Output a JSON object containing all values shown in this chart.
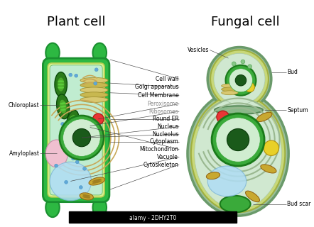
{
  "title_plant": "Plant cell",
  "title_fungal": "Fungal cell",
  "bg_color": "#ffffff",
  "colors": {
    "cell_wall_green": "#2db842",
    "cell_wall_dark": "#1a9030",
    "cell_inner_yellow": "#e8f07a",
    "cell_fill": "#c0ecd0",
    "cell_stroke": "#6abe6a",
    "nucleus_outer": "#3aaa3a",
    "nucleus_inner": "#1a7a1a",
    "nucleus_fill": "#d0edd0",
    "nucleolus": "#1a5a1a",
    "chloroplast_dark": "#2a7a1a",
    "chloroplast_light": "#4aaa2a",
    "mitochondria_fill": "#c8a830",
    "mitochondria_stroke": "#906010",
    "vacuole_fill": "#b0ddf5",
    "vacuole_stroke": "#80b8d8",
    "amyloplast_fill": "#f0c0d0",
    "amyloplast_stroke": "#c890a8",
    "red_dot": "#e83535",
    "yellow_dot": "#e8d028",
    "blue_dot": "#60a8d8",
    "golgi_fill": "#d8c870",
    "golgi_stroke": "#a09030",
    "fungal_wall": "#a8c8a0",
    "fungal_inner": "#d0e8d0",
    "bud_scar_fill": "#3aaa3a",
    "label_gray": "#999999"
  },
  "watermark": "alamy - 2DHY2T0",
  "font_size_title": 13,
  "font_size_label": 5.5
}
